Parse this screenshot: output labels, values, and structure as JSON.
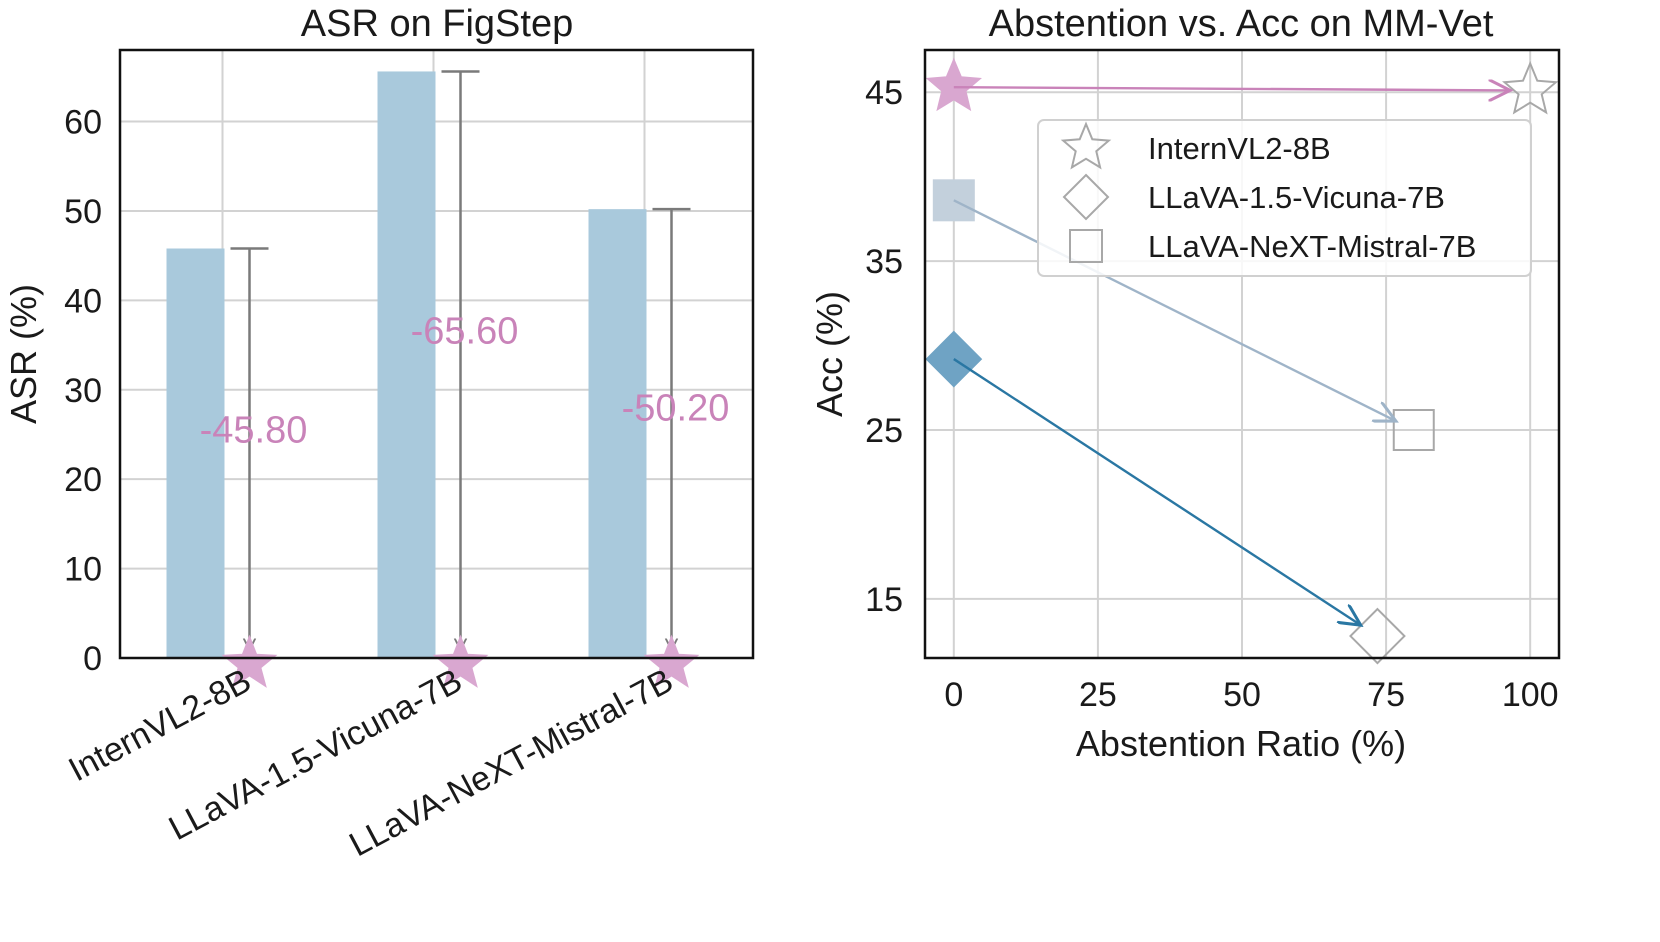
{
  "chart_data": [
    {
      "type": "bar",
      "title": "ASR on FigStep",
      "xlabel": "",
      "ylabel": "ASR (%)",
      "ylim": [
        0,
        68
      ],
      "yticks": [
        "0",
        "10",
        "20",
        "30",
        "40",
        "50",
        "60"
      ],
      "categories": [
        "InternVL2-8B",
        "LLaVA-1.5-Vicuna-7B",
        "LLaVA-NeXT-Mistral-7B"
      ],
      "series": [
        {
          "values": [
            45.8,
            65.6,
            50.2
          ],
          "color": "#a9c9dc"
        },
        {
          "values": [
            0,
            0,
            0
          ],
          "color": "#d9a7d0",
          "marker": "star"
        }
      ],
      "annotations": [
        "-45.80",
        "-65.60",
        "-50.20"
      ],
      "grid": true
    },
    {
      "type": "scatter",
      "title": "Abstention vs. Acc on MM-Vet",
      "xlabel": "Abstention Ratio (%)",
      "ylabel": "Acc (%)",
      "xlim": [
        -5,
        105
      ],
      "ylim": [
        11.5,
        47.5
      ],
      "xticks": [
        "0",
        "25",
        "50",
        "75",
        "100"
      ],
      "yticks": [
        "15",
        "25",
        "35",
        "45"
      ],
      "legend_position": "upper-right",
      "grid": true,
      "series": [
        {
          "name": "InternVL2-8B",
          "marker": "star",
          "color": "#d9a7d0",
          "arrow_color": "#c983b9",
          "from": [
            0,
            45.3
          ],
          "to": [
            100,
            45.1
          ]
        },
        {
          "name": "LLaVA-1.5-Vicuna-7B",
          "marker": "diamond",
          "color": "#6fa3c4",
          "arrow_color": "#2a77a3",
          "from": [
            0,
            29.2
          ],
          "to": [
            73.5,
            12.8
          ]
        },
        {
          "name": "LLaVA-NeXT-Mistral-7B",
          "marker": "square",
          "color": "#c3d0dc",
          "arrow_color": "#9fb4c8",
          "from": [
            0,
            38.6
          ],
          "to": [
            79.8,
            25.0
          ]
        }
      ]
    }
  ]
}
